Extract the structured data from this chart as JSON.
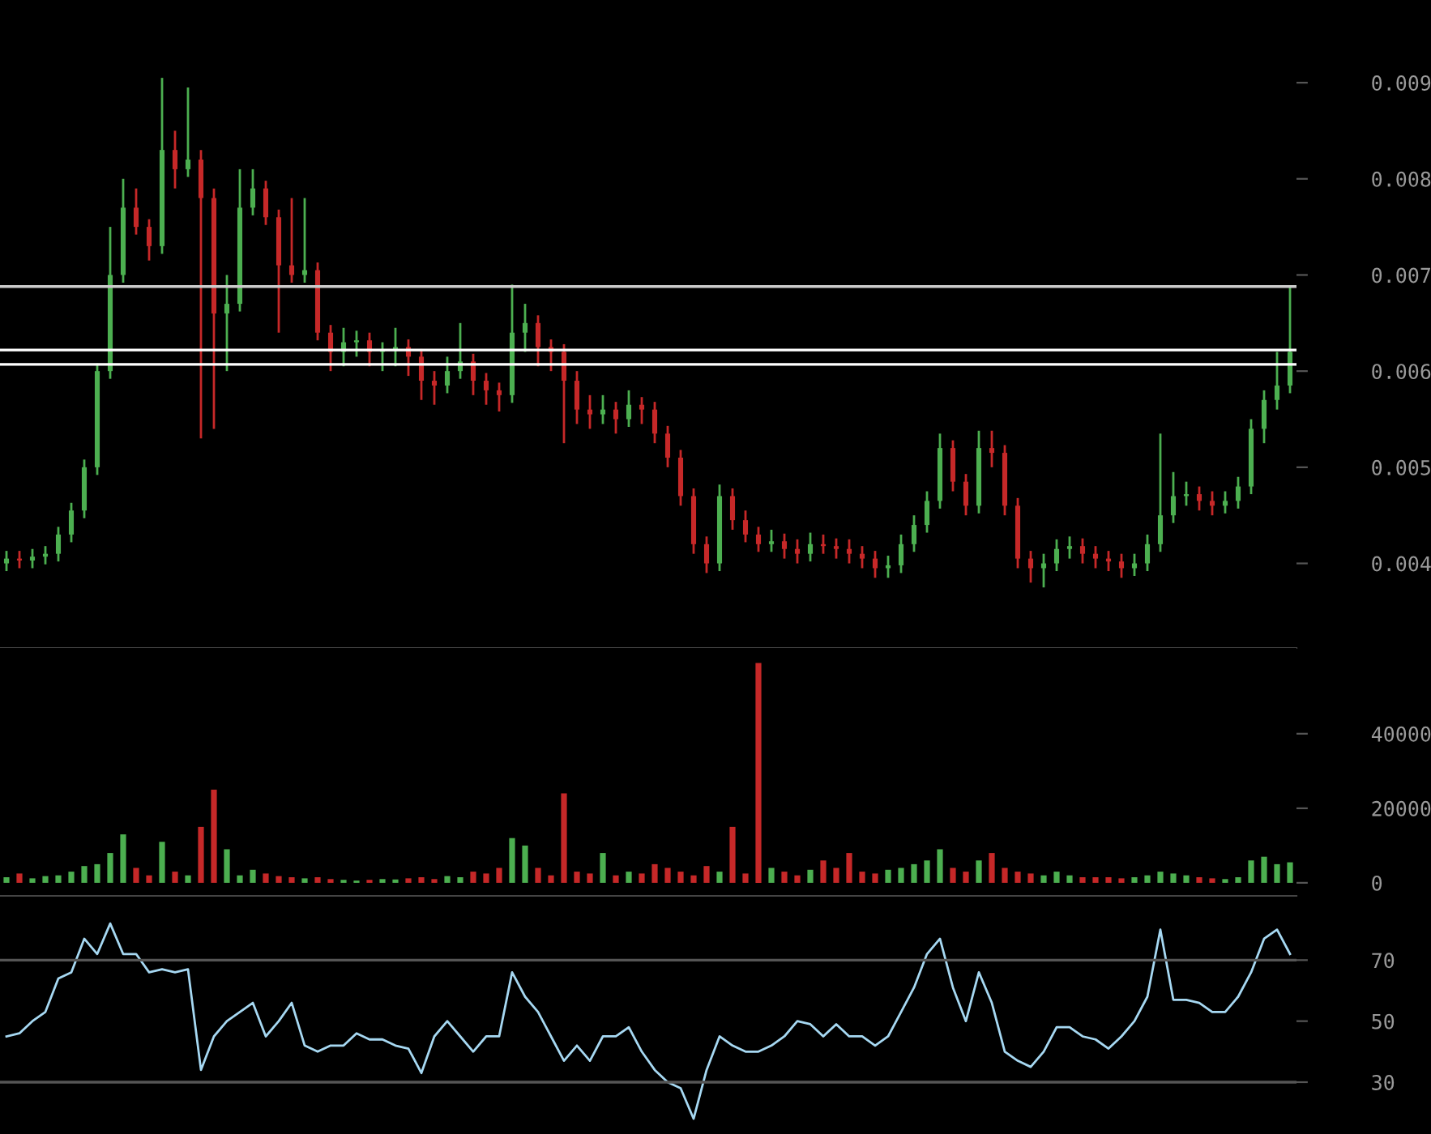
{
  "chart_data": [
    {
      "type": "candlestick",
      "tick_labels": "y",
      "categories": [
        null,
        null,
        null,
        null,
        null,
        null,
        null,
        null,
        null,
        null,
        null,
        null,
        null,
        null,
        null,
        null,
        null,
        null,
        null,
        null,
        null,
        null,
        null,
        null,
        null,
        null,
        null,
        null,
        null,
        null,
        null,
        null,
        null,
        null,
        null,
        null,
        null,
        null,
        null,
        null,
        null,
        null,
        null,
        null,
        null,
        null,
        null,
        null,
        null,
        null,
        null,
        null,
        null,
        null,
        null,
        null,
        null,
        null,
        null,
        null,
        null,
        null,
        null,
        null,
        null,
        null,
        null,
        null,
        null,
        null,
        null,
        null,
        null,
        null,
        null,
        null,
        null,
        null,
        null,
        null,
        null,
        null,
        null,
        null,
        null,
        null,
        null,
        null,
        null,
        null,
        null,
        null,
        null,
        null,
        null,
        null,
        null,
        null,
        null,
        null
      ],
      "ohlc": [
        [
          0.004,
          0.00413,
          0.00392,
          0.00405
        ],
        [
          0.00405,
          0.00413,
          0.00395,
          0.00403
        ],
        [
          0.00403,
          0.00415,
          0.00395,
          0.00407
        ],
        [
          0.00407,
          0.00418,
          0.00399,
          0.0041
        ],
        [
          0.0041,
          0.00438,
          0.00402,
          0.0043
        ],
        [
          0.0043,
          0.00463,
          0.00422,
          0.00455
        ],
        [
          0.00455,
          0.00508,
          0.00447,
          0.005
        ],
        [
          0.005,
          0.00608,
          0.00492,
          0.006
        ],
        [
          0.006,
          0.0075,
          0.00592,
          0.007
        ],
        [
          0.007,
          0.008,
          0.00692,
          0.0077
        ],
        [
          0.0077,
          0.0079,
          0.00742,
          0.0075
        ],
        [
          0.0075,
          0.00758,
          0.00715,
          0.0073
        ],
        [
          0.0073,
          0.00905,
          0.00722,
          0.0083
        ],
        [
          0.0083,
          0.0085,
          0.0079,
          0.0081
        ],
        [
          0.0081,
          0.00895,
          0.00802,
          0.0082
        ],
        [
          0.0082,
          0.0083,
          0.0053,
          0.0078
        ],
        [
          0.0078,
          0.0079,
          0.0054,
          0.0066
        ],
        [
          0.0066,
          0.007,
          0.006,
          0.0067
        ],
        [
          0.0067,
          0.0081,
          0.00662,
          0.0077
        ],
        [
          0.0077,
          0.0081,
          0.00762,
          0.0079
        ],
        [
          0.0079,
          0.00798,
          0.00752,
          0.0076
        ],
        [
          0.0076,
          0.00768,
          0.0064,
          0.0071
        ],
        [
          0.0071,
          0.0078,
          0.00692,
          0.007
        ],
        [
          0.007,
          0.0078,
          0.00692,
          0.00705
        ],
        [
          0.00705,
          0.00713,
          0.00632,
          0.0064
        ],
        [
          0.0064,
          0.00648,
          0.006,
          0.0062
        ],
        [
          0.0062,
          0.00645,
          0.00605,
          0.0063
        ],
        [
          0.0063,
          0.00642,
          0.00615,
          0.00632
        ],
        [
          0.00632,
          0.0064,
          0.00605,
          0.0062
        ],
        [
          0.0062,
          0.0063,
          0.006,
          0.00622
        ],
        [
          0.00622,
          0.00645,
          0.00605,
          0.00625
        ],
        [
          0.00625,
          0.00633,
          0.00595,
          0.00615
        ],
        [
          0.00615,
          0.00623,
          0.0057,
          0.0059
        ],
        [
          0.0059,
          0.006,
          0.00565,
          0.00585
        ],
        [
          0.00585,
          0.00615,
          0.00577,
          0.006
        ],
        [
          0.006,
          0.0065,
          0.00592,
          0.0061
        ],
        [
          0.0061,
          0.00618,
          0.00575,
          0.0059
        ],
        [
          0.0059,
          0.00598,
          0.00565,
          0.0058
        ],
        [
          0.0058,
          0.00588,
          0.00558,
          0.00575
        ],
        [
          0.00575,
          0.0069,
          0.00567,
          0.0064
        ],
        [
          0.0064,
          0.0067,
          0.0062,
          0.0065
        ],
        [
          0.0065,
          0.00658,
          0.00605,
          0.00625
        ],
        [
          0.00625,
          0.00633,
          0.006,
          0.0062
        ],
        [
          0.0062,
          0.00628,
          0.00525,
          0.0059
        ],
        [
          0.0059,
          0.006,
          0.00545,
          0.0056
        ],
        [
          0.0056,
          0.00575,
          0.0054,
          0.00555
        ],
        [
          0.00555,
          0.00575,
          0.00545,
          0.0056
        ],
        [
          0.0056,
          0.00568,
          0.00535,
          0.0055
        ],
        [
          0.0055,
          0.0058,
          0.00542,
          0.00565
        ],
        [
          0.00565,
          0.00573,
          0.00545,
          0.0056
        ],
        [
          0.0056,
          0.00568,
          0.00525,
          0.00535
        ],
        [
          0.00535,
          0.00543,
          0.005,
          0.0051
        ],
        [
          0.0051,
          0.00518,
          0.0046,
          0.0047
        ],
        [
          0.0047,
          0.00478,
          0.0041,
          0.0042
        ],
        [
          0.0042,
          0.00428,
          0.0039,
          0.004
        ],
        [
          0.004,
          0.00482,
          0.00392,
          0.0047
        ],
        [
          0.0047,
          0.00478,
          0.00435,
          0.00445
        ],
        [
          0.00445,
          0.00455,
          0.00422,
          0.0043
        ],
        [
          0.0043,
          0.00438,
          0.00412,
          0.0042
        ],
        [
          0.0042,
          0.00435,
          0.00412,
          0.00423
        ],
        [
          0.00423,
          0.00431,
          0.00405,
          0.00415
        ],
        [
          0.00415,
          0.00425,
          0.004,
          0.0041
        ],
        [
          0.0041,
          0.00432,
          0.00402,
          0.0042
        ],
        [
          0.0042,
          0.0043,
          0.0041,
          0.00418
        ],
        [
          0.00418,
          0.00426,
          0.00405,
          0.00415
        ],
        [
          0.00415,
          0.00425,
          0.004,
          0.0041
        ],
        [
          0.0041,
          0.00418,
          0.00395,
          0.00405
        ],
        [
          0.00405,
          0.00413,
          0.00385,
          0.00395
        ],
        [
          0.00395,
          0.00408,
          0.00385,
          0.00398
        ],
        [
          0.00398,
          0.0043,
          0.0039,
          0.0042
        ],
        [
          0.0042,
          0.0045,
          0.00412,
          0.0044
        ],
        [
          0.0044,
          0.00475,
          0.00432,
          0.00465
        ],
        [
          0.00465,
          0.00535,
          0.00457,
          0.0052
        ],
        [
          0.0052,
          0.00528,
          0.00475,
          0.00485
        ],
        [
          0.00485,
          0.00493,
          0.0045,
          0.0046
        ],
        [
          0.0046,
          0.00538,
          0.00452,
          0.0052
        ],
        [
          0.0052,
          0.00538,
          0.005,
          0.00515
        ],
        [
          0.00515,
          0.00523,
          0.0045,
          0.0046
        ],
        [
          0.0046,
          0.00468,
          0.00395,
          0.00405
        ],
        [
          0.00405,
          0.00413,
          0.0038,
          0.00395
        ],
        [
          0.00395,
          0.0041,
          0.00375,
          0.004
        ],
        [
          0.004,
          0.00425,
          0.00392,
          0.00415
        ],
        [
          0.00415,
          0.00428,
          0.00405,
          0.00418
        ],
        [
          0.00418,
          0.00426,
          0.004,
          0.0041
        ],
        [
          0.0041,
          0.00418,
          0.00395,
          0.00405
        ],
        [
          0.00405,
          0.00413,
          0.00392,
          0.00402
        ],
        [
          0.00402,
          0.0041,
          0.00385,
          0.00395
        ],
        [
          0.00395,
          0.0041,
          0.00387,
          0.004
        ],
        [
          0.004,
          0.0043,
          0.00392,
          0.0042
        ],
        [
          0.0042,
          0.00535,
          0.00412,
          0.0045
        ],
        [
          0.0045,
          0.00495,
          0.00442,
          0.0047
        ],
        [
          0.0047,
          0.00485,
          0.0046,
          0.00472
        ],
        [
          0.00472,
          0.0048,
          0.00455,
          0.00465
        ],
        [
          0.00465,
          0.00475,
          0.0045,
          0.0046
        ],
        [
          0.0046,
          0.00475,
          0.00452,
          0.00465
        ],
        [
          0.00465,
          0.0049,
          0.00457,
          0.0048
        ],
        [
          0.0048,
          0.0055,
          0.00472,
          0.0054
        ],
        [
          0.0054,
          0.0058,
          0.00525,
          0.0057
        ],
        [
          0.0057,
          0.0062,
          0.0056,
          0.00585
        ],
        [
          0.00585,
          0.00688,
          0.00577,
          0.0062
        ]
      ],
      "colors": [
        "#4caf50",
        "#c62828",
        "#4caf50",
        "#4caf50",
        "#4caf50",
        "#4caf50",
        "#4caf50",
        "#4caf50",
        "#4caf50",
        "#4caf50",
        "#c62828",
        "#c62828",
        "#4caf50",
        "#c62828",
        "#4caf50",
        "#c62828",
        "#c62828",
        "#4caf50",
        "#4caf50",
        "#4caf50",
        "#c62828",
        "#c62828",
        "#c62828",
        "#4caf50",
        "#c62828",
        "#c62828",
        "#4caf50",
        "#4caf50",
        "#c62828",
        "#4caf50",
        "#4caf50",
        "#c62828",
        "#c62828",
        "#c62828",
        "#4caf50",
        "#4caf50",
        "#c62828",
        "#c62828",
        "#c62828",
        "#4caf50",
        "#4caf50",
        "#c62828",
        "#c62828",
        "#c62828",
        "#c62828",
        "#c62828",
        "#4caf50",
        "#c62828",
        "#4caf50",
        "#c62828",
        "#c62828",
        "#c62828",
        "#c62828",
        "#c62828",
        "#c62828",
        "#4caf50",
        "#c62828",
        "#c62828",
        "#c62828",
        "#4caf50",
        "#c62828",
        "#c62828",
        "#4caf50",
        "#c62828",
        "#c62828",
        "#c62828",
        "#c62828",
        "#c62828",
        "#4caf50",
        "#4caf50",
        "#4caf50",
        "#4caf50",
        "#4caf50",
        "#c62828",
        "#c62828",
        "#4caf50",
        "#c62828",
        "#c62828",
        "#c62828",
        "#c62828",
        "#4caf50",
        "#4caf50",
        "#4caf50",
        "#c62828",
        "#c62828",
        "#c62828",
        "#c62828",
        "#4caf50",
        "#4caf50",
        "#4caf50",
        "#4caf50",
        "#4caf50",
        "#c62828",
        "#c62828",
        "#4caf50",
        "#4caf50",
        "#4caf50",
        "#4caf50",
        "#4caf50",
        "#4caf50"
      ],
      "ylim": [
        0.00312,
        0.00986
      ],
      "yticks": [
        0.004,
        0.005,
        0.006,
        0.007,
        0.008,
        0.009
      ],
      "ref_lines": [
        {
          "axis": "y",
          "value": 0.00688,
          "color": "#cccccc"
        },
        {
          "axis": "y",
          "value": 0.00622,
          "color": "#ffffff"
        },
        {
          "axis": "y",
          "value": 0.00607,
          "color": "#ffffff"
        }
      ]
    },
    {
      "type": "bar",
      "tick_labels": "y",
      "categories": [
        null,
        null,
        null,
        null,
        null,
        null,
        null,
        null,
        null,
        null,
        null,
        null,
        null,
        null,
        null,
        null,
        null,
        null,
        null,
        null,
        null,
        null,
        null,
        null,
        null,
        null,
        null,
        null,
        null,
        null,
        null,
        null,
        null,
        null,
        null,
        null,
        null,
        null,
        null,
        null,
        null,
        null,
        null,
        null,
        null,
        null,
        null,
        null,
        null,
        null,
        null,
        null,
        null,
        null,
        null,
        null,
        null,
        null,
        null,
        null,
        null,
        null,
        null,
        null,
        null,
        null,
        null,
        null,
        null,
        null,
        null,
        null,
        null,
        null,
        null,
        null,
        null,
        null,
        null,
        null,
        null,
        null,
        null,
        null,
        null,
        null,
        null,
        null,
        null,
        null,
        null,
        null,
        null,
        null,
        null,
        null,
        null,
        null,
        null,
        null
      ],
      "values": [
        1500,
        2500,
        1200,
        1800,
        2000,
        3000,
        4500,
        5000,
        8000,
        13000,
        4000,
        2000,
        11000,
        3000,
        2000,
        15000,
        25000,
        9000,
        2000,
        3500,
        2500,
        1800,
        1500,
        1200,
        1500,
        1000,
        800,
        600,
        800,
        1000,
        900,
        1200,
        1500,
        1000,
        1800,
        1500,
        3000,
        2500,
        4000,
        12000,
        10000,
        4000,
        2000,
        24000,
        3000,
        2500,
        8000,
        2000,
        3000,
        2500,
        5000,
        4000,
        3000,
        2000,
        4500,
        3000,
        15000,
        2500,
        59000,
        4000,
        3000,
        2000,
        3500,
        6000,
        4000,
        8000,
        3000,
        2500,
        3500,
        4000,
        5000,
        6000,
        9000,
        4000,
        3000,
        6000,
        8000,
        4000,
        3000,
        2500,
        2000,
        3000,
        2000,
        1500,
        1500,
        1500,
        1200,
        1500,
        2000,
        3000,
        2500,
        2000,
        1500,
        1200,
        1000,
        1500,
        6000,
        7000,
        5000,
        5500
      ],
      "colors": [
        "#4caf50",
        "#c62828",
        "#4caf50",
        "#4caf50",
        "#4caf50",
        "#4caf50",
        "#4caf50",
        "#4caf50",
        "#4caf50",
        "#4caf50",
        "#c62828",
        "#c62828",
        "#4caf50",
        "#c62828",
        "#4caf50",
        "#c62828",
        "#c62828",
        "#4caf50",
        "#4caf50",
        "#4caf50",
        "#c62828",
        "#c62828",
        "#c62828",
        "#4caf50",
        "#c62828",
        "#c62828",
        "#4caf50",
        "#4caf50",
        "#c62828",
        "#4caf50",
        "#4caf50",
        "#c62828",
        "#c62828",
        "#c62828",
        "#4caf50",
        "#4caf50",
        "#c62828",
        "#c62828",
        "#c62828",
        "#4caf50",
        "#4caf50",
        "#c62828",
        "#c62828",
        "#c62828",
        "#c62828",
        "#c62828",
        "#4caf50",
        "#c62828",
        "#4caf50",
        "#c62828",
        "#c62828",
        "#c62828",
        "#c62828",
        "#c62828",
        "#c62828",
        "#4caf50",
        "#c62828",
        "#c62828",
        "#c62828",
        "#4caf50",
        "#c62828",
        "#c62828",
        "#4caf50",
        "#c62828",
        "#c62828",
        "#c62828",
        "#c62828",
        "#c62828",
        "#4caf50",
        "#4caf50",
        "#4caf50",
        "#4caf50",
        "#4caf50",
        "#c62828",
        "#c62828",
        "#4caf50",
        "#c62828",
        "#c62828",
        "#c62828",
        "#c62828",
        "#4caf50",
        "#4caf50",
        "#4caf50",
        "#c62828",
        "#c62828",
        "#c62828",
        "#c62828",
        "#4caf50",
        "#4caf50",
        "#4caf50",
        "#4caf50",
        "#4caf50",
        "#c62828",
        "#c62828",
        "#4caf50",
        "#4caf50",
        "#4caf50",
        "#4caf50",
        "#4caf50",
        "#4caf50"
      ],
      "ylim": [
        -3500,
        63000
      ],
      "yticks": [
        0,
        20000,
        40000
      ]
    },
    {
      "type": "line",
      "tick_labels": "y",
      "categories": [
        null,
        null,
        null,
        null,
        null,
        null,
        null,
        null,
        null,
        null,
        null,
        null,
        null,
        null,
        null,
        null,
        null,
        null,
        null,
        null,
        null,
        null,
        null,
        null,
        null,
        null,
        null,
        null,
        null,
        null,
        null,
        null,
        null,
        null,
        null,
        null,
        null,
        null,
        null,
        null,
        null,
        null,
        null,
        null,
        null,
        null,
        null,
        null,
        null,
        null,
        null,
        null,
        null,
        null,
        null,
        null,
        null,
        null,
        null,
        null,
        null,
        null,
        null,
        null,
        null,
        null,
        null,
        null,
        null,
        null,
        null,
        null,
        null,
        null,
        null,
        null,
        null,
        null,
        null,
        null,
        null,
        null,
        null,
        null,
        null,
        null,
        null,
        null,
        null,
        null,
        null,
        null,
        null,
        null,
        null,
        null,
        null,
        null,
        null,
        null
      ],
      "series": [
        {
          "color": "#a6d8f2",
          "values": [
            45,
            46,
            50,
            53,
            64,
            66,
            77,
            72,
            82,
            72,
            72,
            66,
            67,
            66,
            67,
            34,
            45,
            50,
            53,
            56,
            45,
            50,
            56,
            42,
            40,
            42,
            42,
            46,
            44,
            44,
            42,
            41,
            33,
            45,
            50,
            45,
            40,
            45,
            45,
            66,
            58,
            53,
            45,
            37,
            42,
            37,
            45,
            45,
            48,
            40,
            34,
            30,
            28,
            18,
            34,
            45,
            42,
            40,
            40,
            42,
            45,
            50,
            49,
            45,
            49,
            45,
            45,
            42,
            45,
            53,
            61,
            72,
            77,
            61,
            50,
            66,
            56,
            40,
            37,
            35,
            40,
            48,
            48,
            45,
            44,
            41,
            45,
            50,
            58,
            80,
            57,
            57,
            56,
            53,
            53,
            58,
            66,
            77,
            80,
            72
          ]
        }
      ],
      "ylim": [
        13,
        90
      ],
      "yticks": [
        30,
        50,
        70
      ],
      "ref_lines": [
        {
          "axis": "y",
          "value": 70,
          "color": "#555555"
        },
        {
          "axis": "y",
          "value": 30,
          "color": "#555555"
        }
      ]
    }
  ]
}
